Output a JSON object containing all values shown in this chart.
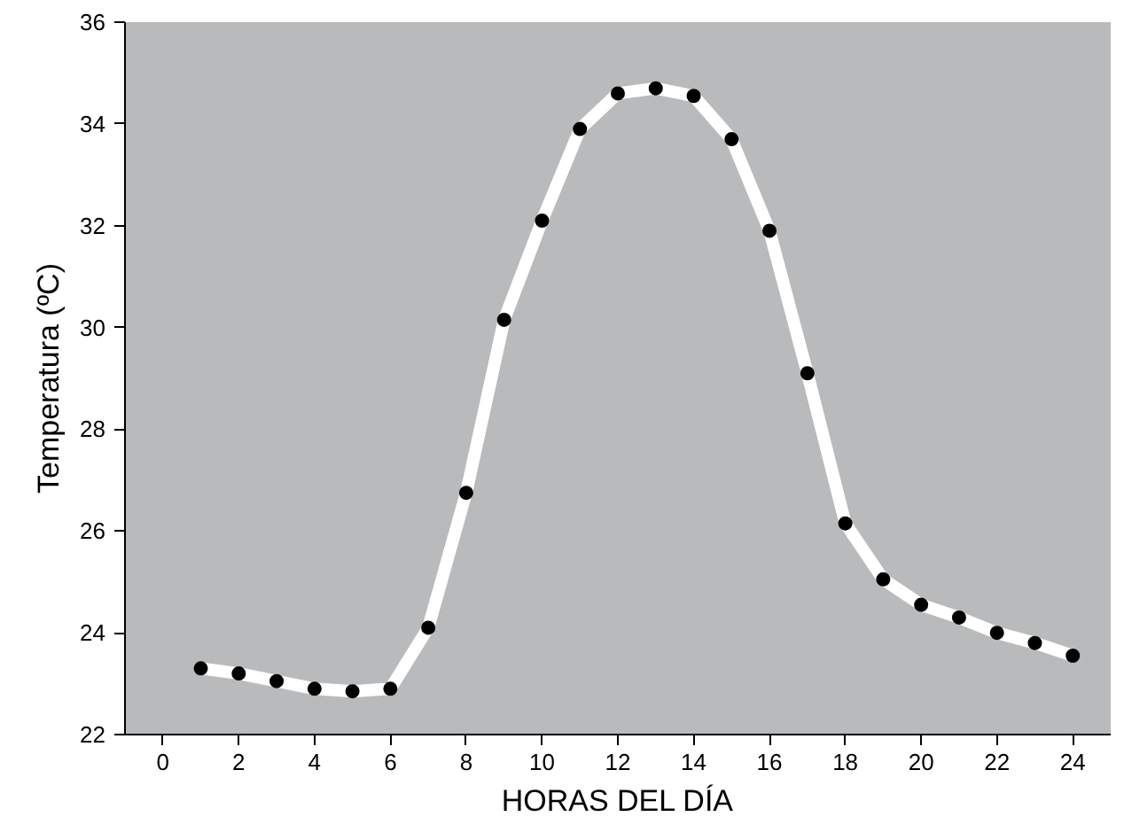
{
  "chart_data": {
    "type": "line",
    "xlabel": "HORAS DEL DÍA",
    "ylabel": "Temperatura (ºC)",
    "x": [
      1,
      2,
      3,
      4,
      5,
      6,
      7,
      8,
      9,
      10,
      11,
      12,
      13,
      14,
      15,
      16,
      17,
      18,
      19,
      20,
      21,
      22,
      23,
      24
    ],
    "series": [
      {
        "color": "#ffffff",
        "values": [
          23.3,
          23.2,
          23.05,
          22.9,
          22.85,
          22.9,
          24.1,
          26.75,
          30.15,
          32.1,
          33.9,
          34.6,
          34.7,
          34.55,
          33.7,
          31.9,
          29.1,
          26.15,
          25.05,
          24.55,
          24.3,
          24.0,
          23.8,
          23.55
        ]
      },
      {
        "type": "scatter",
        "color": "#000000",
        "marker": "circle",
        "values": [
          23.3,
          23.2,
          23.05,
          22.9,
          22.85,
          22.9,
          24.1,
          26.75,
          30.15,
          32.1,
          33.9,
          34.6,
          34.7,
          34.55,
          33.7,
          31.9,
          29.1,
          26.15,
          25.05,
          24.55,
          24.3,
          24.0,
          23.8,
          23.55
        ]
      }
    ],
    "xlim": [
      -1,
      25
    ],
    "ylim": [
      22,
      36
    ],
    "xticks": [
      0,
      2,
      4,
      6,
      8,
      10,
      12,
      14,
      16,
      18,
      20,
      22,
      24
    ],
    "yticks": [
      22,
      24,
      26,
      28,
      30,
      32,
      34,
      36
    ],
    "grid": false
  }
}
